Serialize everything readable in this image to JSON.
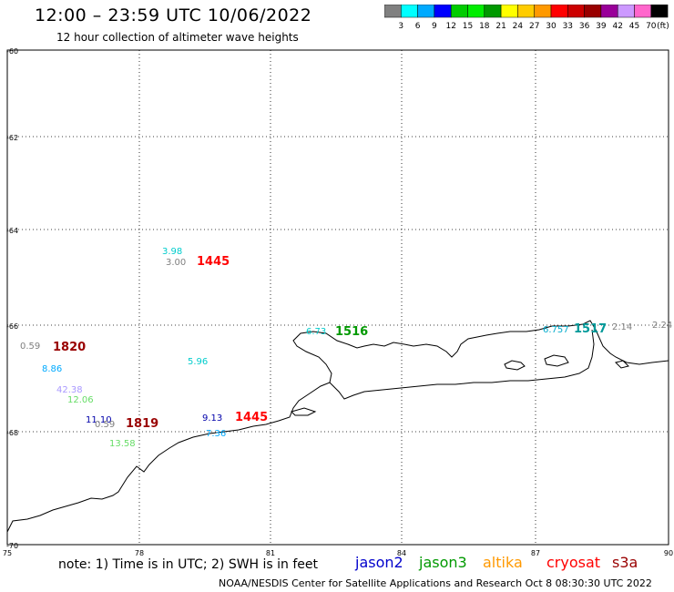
{
  "header": {
    "title": "12:00 – 23:59 UTC 10/06/2022",
    "subtitle": "12 hour collection of altimeter wave heights"
  },
  "colorbar": {
    "colors": [
      "#808080",
      "#00ffff",
      "#00aaff",
      "#0000ff",
      "#00cc00",
      "#00ee00",
      "#009900",
      "#ffff00",
      "#ffcc00",
      "#ff9900",
      "#ff0000",
      "#cc0000",
      "#990000",
      "#990099",
      "#cc99ff",
      "#ff66cc",
      "#000000"
    ],
    "labels": [
      "3",
      "6",
      "9",
      "12",
      "15",
      "18",
      "21",
      "24",
      "27",
      "30",
      "33",
      "36",
      "39",
      "42",
      "45",
      "70"
    ],
    "unit": "(ft)"
  },
  "axes": {
    "lat_labels": [
      "-60",
      "-62",
      "-64",
      "-66",
      "-68",
      "-70"
    ],
    "lon_labels": [
      "75",
      "78",
      "81",
      "84",
      "87",
      "90"
    ]
  },
  "observations": [
    {
      "text": "3.98",
      "color": "#00cccc"
    },
    {
      "text": "3.00",
      "color": "#808080"
    },
    {
      "text": "1445",
      "color": "#ff0000",
      "time": true
    },
    {
      "text": "0.59",
      "color": "#808080"
    },
    {
      "text": "1820",
      "color": "#990000",
      "time": true
    },
    {
      "text": "8.86",
      "color": "#00aaff"
    },
    {
      "text": "5.96",
      "color": "#00cccc"
    },
    {
      "text": "42.38",
      "color": "#aa99ff"
    },
    {
      "text": "12.06",
      "color": "#66dd66"
    },
    {
      "text": "11.10",
      "color": "#0000aa"
    },
    {
      "text": "0.59",
      "color": "#808080"
    },
    {
      "text": "1819",
      "color": "#990000",
      "time": true
    },
    {
      "text": "13.58",
      "color": "#66dd66"
    },
    {
      "text": "9.13",
      "color": "#0000aa"
    },
    {
      "text": "1445",
      "color": "#ff0000",
      "time": true
    },
    {
      "text": "7.36",
      "color": "#00aaff"
    },
    {
      "text": "6.73",
      "color": "#00cccc"
    },
    {
      "text": "1516",
      "color": "#009900",
      "time": true
    },
    {
      "text": "6.757",
      "color": "#00aacc"
    },
    {
      "text": "1517",
      "color": "#009999",
      "time": true
    },
    {
      "text": "2.14",
      "color": "#808080"
    },
    {
      "text": "2.24",
      "color": "#808080"
    }
  ],
  "footer": {
    "note": "note: 1) Time is in UTC; 2) SWH is in feet",
    "satellites": [
      {
        "name": "jason2",
        "color": "#0000cc"
      },
      {
        "name": "jason3",
        "color": "#009900"
      },
      {
        "name": "altika",
        "color": "#ff9900"
      },
      {
        "name": "cryosat",
        "color": "#ff0000"
      },
      {
        "name": "s3a",
        "color": "#990000"
      }
    ],
    "credit": "NOAA/NESDIS Center for Satellite Applications and Research   Oct  8 08:30:30 UTC 2022"
  }
}
